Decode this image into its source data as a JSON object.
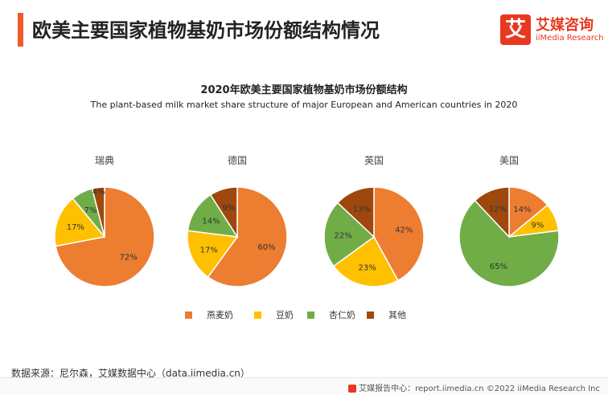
{
  "header": {
    "title": "欧美主要国家植物基奶市场份额结构情况",
    "accent_color": "#f15a24"
  },
  "logo": {
    "mark": "艾",
    "name_cn": "艾媒咨询",
    "name_en": "iiMedia Research",
    "color": "#e8381f"
  },
  "chart_data": {
    "type": "pie",
    "title": "2020年欧美主要国家植物基奶市场份额结构",
    "subtitle": "The plant-based milk market share structure of major European and American countries in 2020",
    "legend_position": "bottom",
    "categories": [
      "燕麦奶",
      "豆奶",
      "杏仁奶",
      "其他"
    ],
    "colors": [
      "#ed7d31",
      "#ffc000",
      "#70ad47",
      "#9e480e"
    ],
    "charts": [
      {
        "name": "瑞典",
        "values": [
          72,
          17,
          7,
          4
        ],
        "labels": [
          "72%",
          "17%",
          "7%",
          "4%"
        ]
      },
      {
        "name": "德国",
        "values": [
          60,
          17,
          14,
          9
        ],
        "labels": [
          "60%",
          "17%",
          "14%",
          "9%"
        ]
      },
      {
        "name": "英国",
        "values": [
          42,
          23,
          22,
          13
        ],
        "labels": [
          "42%",
          "23%",
          "22%",
          "13%"
        ]
      },
      {
        "name": "美国",
        "values": [
          14,
          9,
          65,
          12
        ],
        "labels": [
          "14%",
          "9%",
          "65%",
          "12%"
        ]
      }
    ]
  },
  "source": "数据来源：尼尔森，艾媒数据中心（data.iimedia.cn）",
  "footer": {
    "text": "艾媒报告中心：report.iimedia.cn  ©2022  iiMedia Research Inc"
  }
}
